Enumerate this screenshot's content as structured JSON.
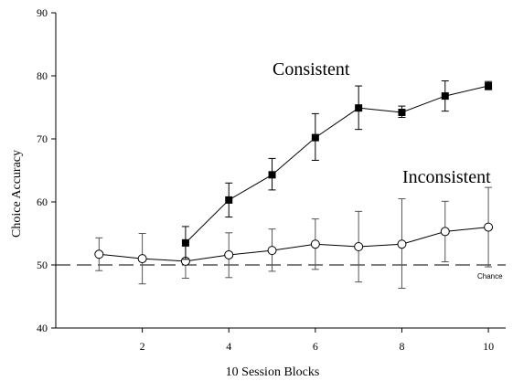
{
  "chart_data": {
    "type": "line",
    "xlabel": "10 Session Blocks",
    "ylabel": "Choice Accuracy",
    "xlim": [
      0,
      10.4
    ],
    "ylim": [
      40,
      90
    ],
    "xticks": [
      2,
      4,
      6,
      8,
      10
    ],
    "yticks": [
      40,
      50,
      60,
      70,
      80,
      90
    ],
    "grid": false,
    "reference_line": {
      "y": 50,
      "label": "Chance",
      "style": "dashed"
    },
    "series": [
      {
        "name": "Consistent",
        "marker": "filled-square",
        "x": [
          3,
          4,
          5,
          6,
          7,
          8,
          9,
          10
        ],
        "y": [
          53.5,
          60.3,
          64.3,
          70.2,
          74.9,
          74.2,
          76.8,
          78.4
        ],
        "err_upper": [
          2.6,
          2.7,
          2.6,
          3.8,
          3.5,
          1.0,
          2.4,
          0.7
        ],
        "err_lower": [
          2.6,
          2.7,
          2.4,
          3.6,
          3.4,
          0.8,
          2.4,
          0.6
        ]
      },
      {
        "name": "Inconsistent",
        "marker": "open-circle",
        "x": [
          1,
          2,
          3,
          4,
          5,
          6,
          7,
          8,
          9,
          10
        ],
        "y": [
          51.7,
          51.0,
          50.6,
          51.6,
          52.3,
          53.3,
          52.9,
          53.3,
          55.3,
          56.0
        ],
        "err_upper": [
          2.6,
          4.0,
          2.5,
          3.5,
          3.4,
          4.0,
          5.6,
          7.2,
          4.8,
          6.3
        ],
        "err_lower": [
          2.6,
          4.0,
          2.7,
          3.6,
          3.3,
          4.0,
          5.6,
          7.0,
          4.8,
          6.3
        ]
      }
    ]
  }
}
